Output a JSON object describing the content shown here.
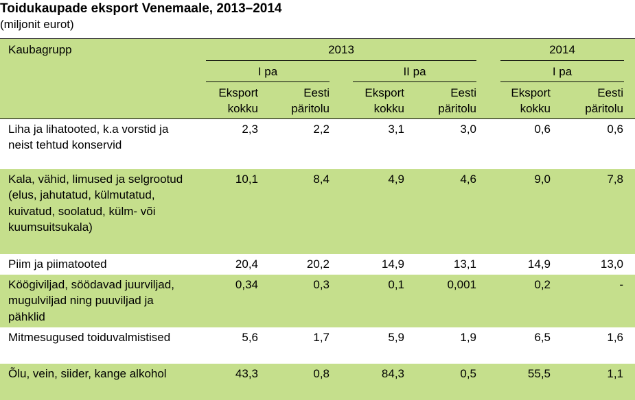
{
  "title": "Toidukaupade eksport Venemaale, 2013–2014",
  "subtitle": "(miljonit eurot)",
  "header": {
    "group_label": "Kaubagrupp",
    "year_2013": "2013",
    "year_2014": "2014",
    "period_2013_1": "I pa",
    "period_2013_2": "II pa",
    "period_2014_1": "I pa",
    "col_total": [
      "Eksport",
      "kokku"
    ],
    "col_origin": [
      "Eesti",
      "päritolu"
    ]
  },
  "rows": [
    {
      "label": "Liha ja lihatooted, k.a vorstid ja neist tehtud konservid",
      "values": [
        "2,3",
        "2,2",
        "3,1",
        "3,0",
        "0,6",
        "0,6"
      ]
    },
    {
      "label": "Kala, vähid, limused ja selgrootud (elus, jahutatud, külmutatud, kuivatud, soolatud, külm- või kuumsuitsukala)",
      "values": [
        "10,1",
        "8,4",
        "4,9",
        "4,6",
        "9,0",
        "7,8"
      ]
    },
    {
      "label": "Piim ja piimatooted",
      "values": [
        "20,4",
        "20,2",
        "14,9",
        "13,1",
        "14,9",
        "13,0"
      ]
    },
    {
      "label": "Köögiviljad, söödavad juurviljad, mugulviljad ning puuviljad ja pähklid",
      "values": [
        "0,34",
        "0,3",
        "0,1",
        "0,001",
        "0,2",
        "-"
      ]
    },
    {
      "label": "Mitmesugused toiduvalmistised",
      "values": [
        "5,6",
        "1,7",
        "5,9",
        "1,9",
        "6,5",
        "1,6"
      ]
    },
    {
      "label": "Õlu, vein, siider, kange alkohol",
      "values": [
        "43,3",
        "0,8",
        "84,3",
        "0,5",
        "55,5",
        "1,1"
      ]
    }
  ]
}
